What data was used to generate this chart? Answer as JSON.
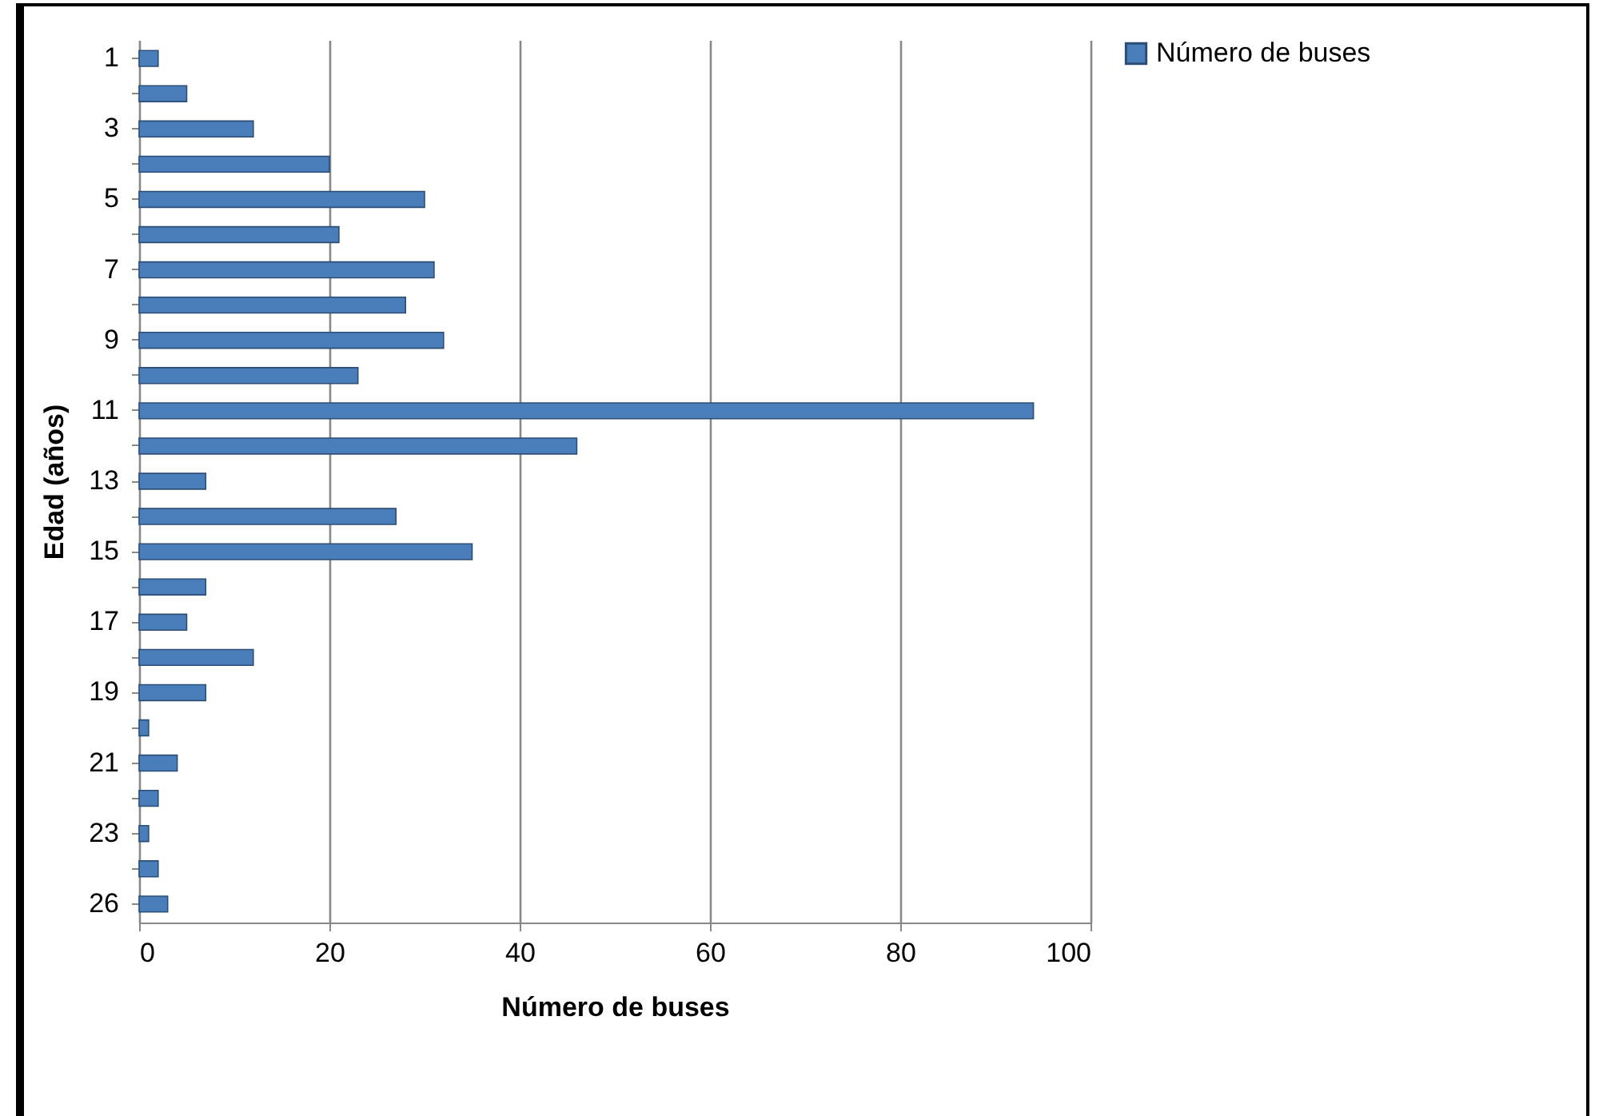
{
  "chart_data": {
    "type": "bar",
    "orientation": "horizontal",
    "xlabel": "Número de buses",
    "ylabel": "Edad (años)",
    "categories": [
      "1",
      null,
      "3",
      null,
      "5",
      null,
      "7",
      null,
      "9",
      null,
      "11",
      null,
      "13",
      null,
      "15",
      null,
      "17",
      null,
      "19",
      null,
      "21",
      null,
      "23",
      null,
      "26"
    ],
    "series": [
      {
        "name": "Número de buses",
        "color": "#4a7ebb",
        "values": [
          2,
          5,
          12,
          20,
          30,
          21,
          31,
          28,
          32,
          23,
          94,
          46,
          7,
          27,
          35,
          7,
          5,
          12,
          7,
          1,
          4,
          2,
          1,
          2,
          3
        ]
      }
    ],
    "xlim": [
      0,
      100
    ],
    "xticks": [
      0,
      20,
      40,
      60,
      80,
      100
    ],
    "grid": "x",
    "legend": "right"
  }
}
